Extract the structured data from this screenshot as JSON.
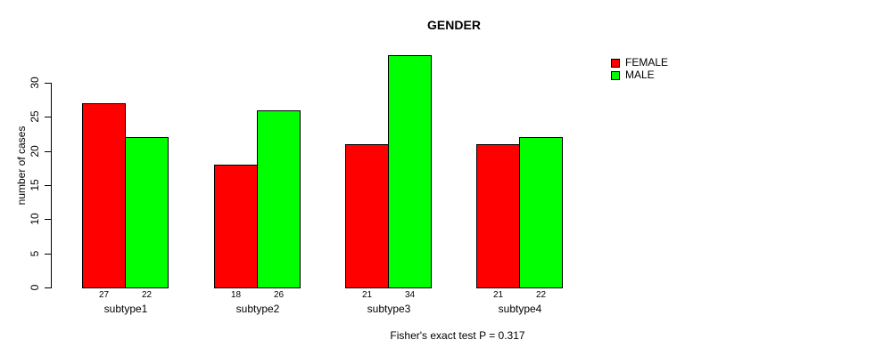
{
  "chart_data": {
    "type": "bar",
    "title": "GENDER",
    "categories": [
      "subtype1",
      "subtype2",
      "subtype3",
      "subtype4"
    ],
    "series": [
      {
        "name": "FEMALE",
        "color": "#ff0000",
        "values": [
          27,
          18,
          21,
          21
        ]
      },
      {
        "name": "MALE",
        "color": "#00ff00",
        "values": [
          22,
          26,
          34,
          22
        ]
      }
    ],
    "ylabel": "number of cases",
    "xlabel": "",
    "yticks": [
      0,
      5,
      10,
      15,
      20,
      25,
      30
    ],
    "ylim": [
      0,
      34
    ],
    "grid": false,
    "bar_value_labels": true,
    "legend_position": "top-right-outside",
    "annotation": "Fisher's exact test P = 0.317",
    "background_color": "#ffffff",
    "axis_color": "#000000"
  }
}
